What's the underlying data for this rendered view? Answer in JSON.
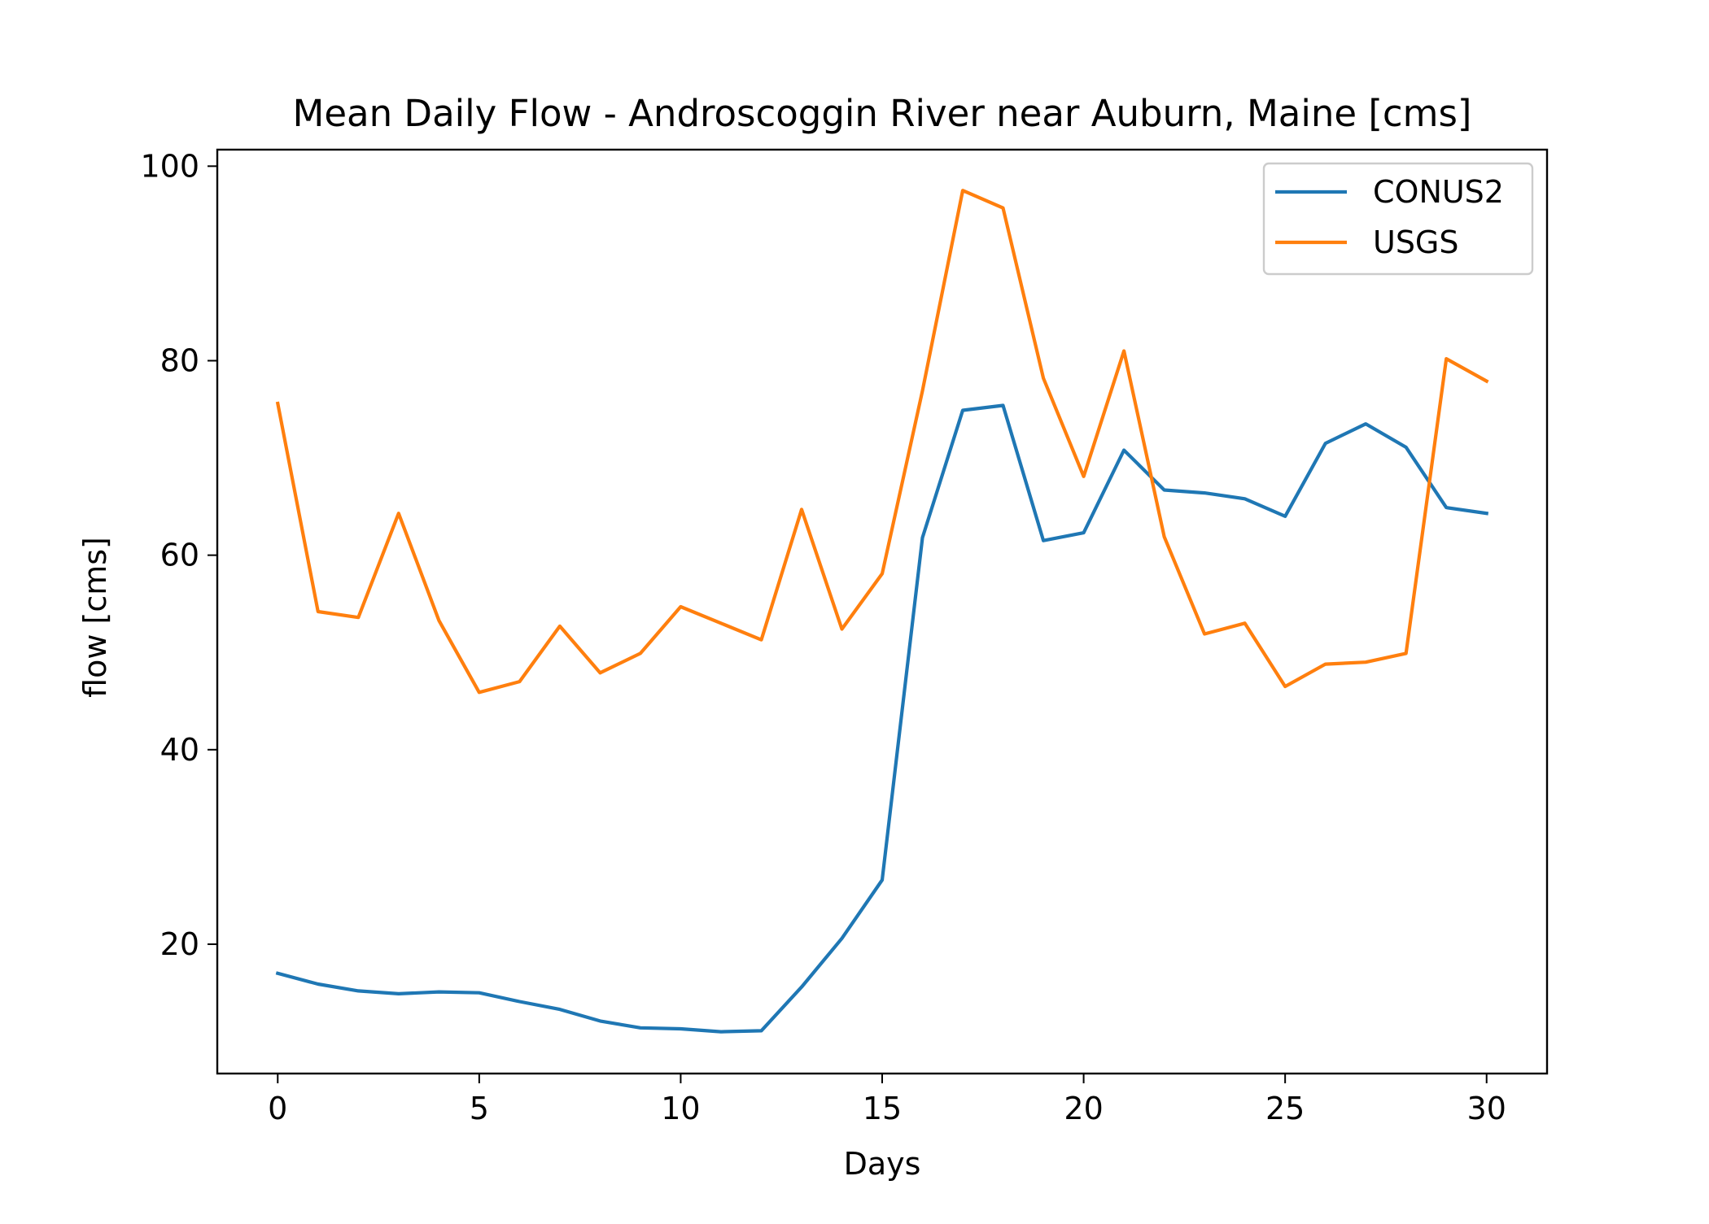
{
  "chart_data": {
    "type": "line",
    "title": "Mean Daily Flow - Androscoggin River near Auburn, Maine [cms]",
    "xlabel": "Days",
    "ylabel": "flow [cms]",
    "xlim": [
      -1.5,
      31.5
    ],
    "ylim": [
      6.7,
      101.7
    ],
    "xticks": [
      0,
      5,
      10,
      15,
      20,
      25,
      30
    ],
    "yticks": [
      20,
      40,
      60,
      80,
      100
    ],
    "grid": false,
    "legend_position": "top-right",
    "x": [
      0,
      1,
      2,
      3,
      4,
      5,
      6,
      7,
      8,
      9,
      10,
      11,
      12,
      13,
      14,
      15,
      16,
      17,
      18,
      19,
      20,
      21,
      22,
      23,
      24,
      25,
      26,
      27,
      28,
      29,
      30
    ],
    "series": [
      {
        "name": "CONUS2",
        "color": "#1f77b4",
        "values": [
          17.0,
          15.9,
          15.2,
          14.9,
          15.1,
          15.0,
          14.1,
          13.3,
          12.1,
          11.4,
          11.3,
          11.0,
          11.1,
          15.6,
          20.6,
          26.6,
          61.8,
          74.9,
          75.4,
          61.5,
          62.3,
          70.8,
          66.7,
          66.4,
          65.8,
          64.0,
          71.5,
          73.5,
          71.1,
          64.9,
          64.3
        ]
      },
      {
        "name": "USGS",
        "color": "#ff7f0e",
        "values": [
          75.6,
          54.2,
          53.6,
          64.3,
          53.3,
          45.9,
          47.0,
          52.7,
          47.9,
          49.9,
          54.7,
          53.0,
          51.3,
          64.7,
          52.4,
          58.1,
          76.9,
          97.5,
          95.7,
          78.2,
          68.1,
          81.0,
          61.9,
          51.9,
          53.0,
          46.5,
          48.8,
          49.0,
          49.9,
          80.2,
          77.9
        ]
      }
    ]
  }
}
